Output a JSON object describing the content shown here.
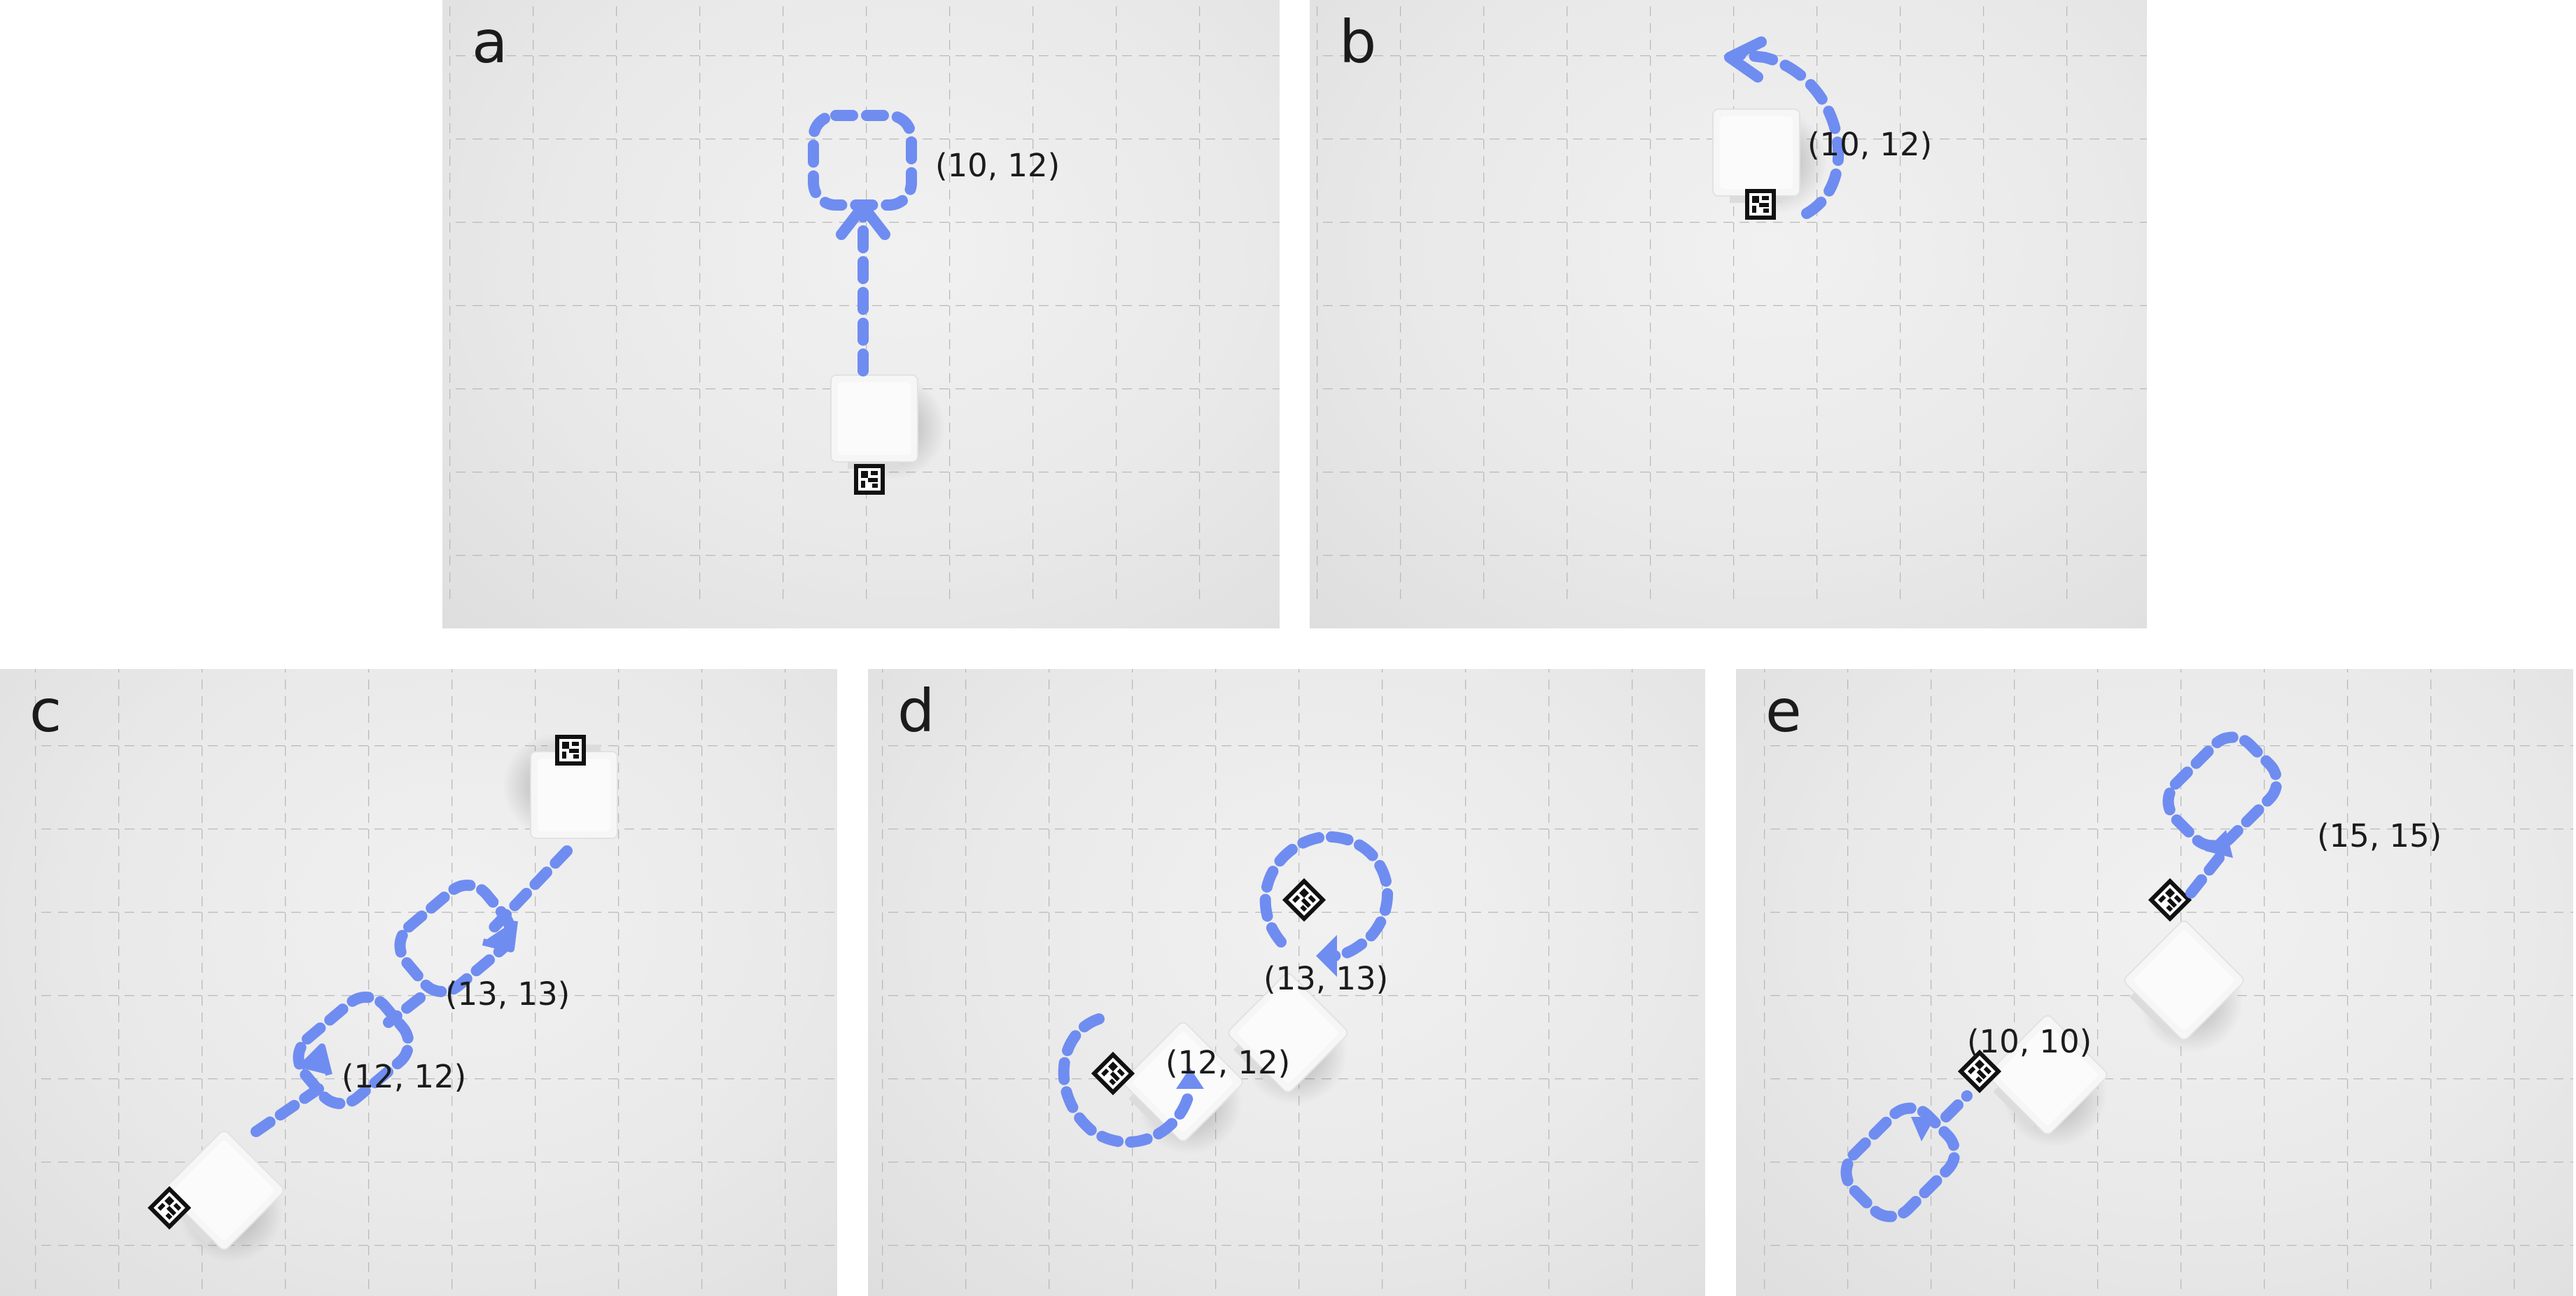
{
  "panels": [
    {
      "label": "a",
      "coords": [
        "(10, 12)"
      ]
    },
    {
      "label": "b",
      "coords": [
        "(10, 12)"
      ]
    },
    {
      "label": "c",
      "coords": [
        "(13, 13)",
        "(12, 12)"
      ]
    },
    {
      "label": "d",
      "coords": [
        "(13, 13)",
        "(12, 12)"
      ]
    },
    {
      "label": "e",
      "coords": [
        "(15, 15)",
        "(10, 10)"
      ]
    }
  ],
  "colors": {
    "path": "#6f8cf0",
    "grid_line": "#b9b9b9",
    "robot_body": "#f4f4f4",
    "marker": "#111111"
  },
  "icons": [
    "robot-cube-icon",
    "fiducial-marker-icon",
    "dashed-path-arrow-icon"
  ]
}
